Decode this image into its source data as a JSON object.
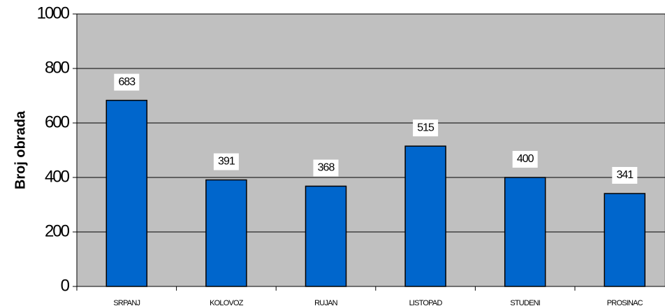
{
  "chart_data": {
    "type": "bar",
    "ylabel": "Broj obrada",
    "categories": [
      "SRPANJ",
      "KOLOVOZ",
      "RUJAN",
      "LISTOPAD",
      "STUDENI",
      "PROSINAC"
    ],
    "values": [
      683,
      391,
      368,
      515,
      400,
      341
    ],
    "color": "#0066cc",
    "ylim": [
      0,
      1000
    ],
    "yticks": [
      0,
      200,
      400,
      600,
      800,
      1000
    ],
    "grid": true
  }
}
